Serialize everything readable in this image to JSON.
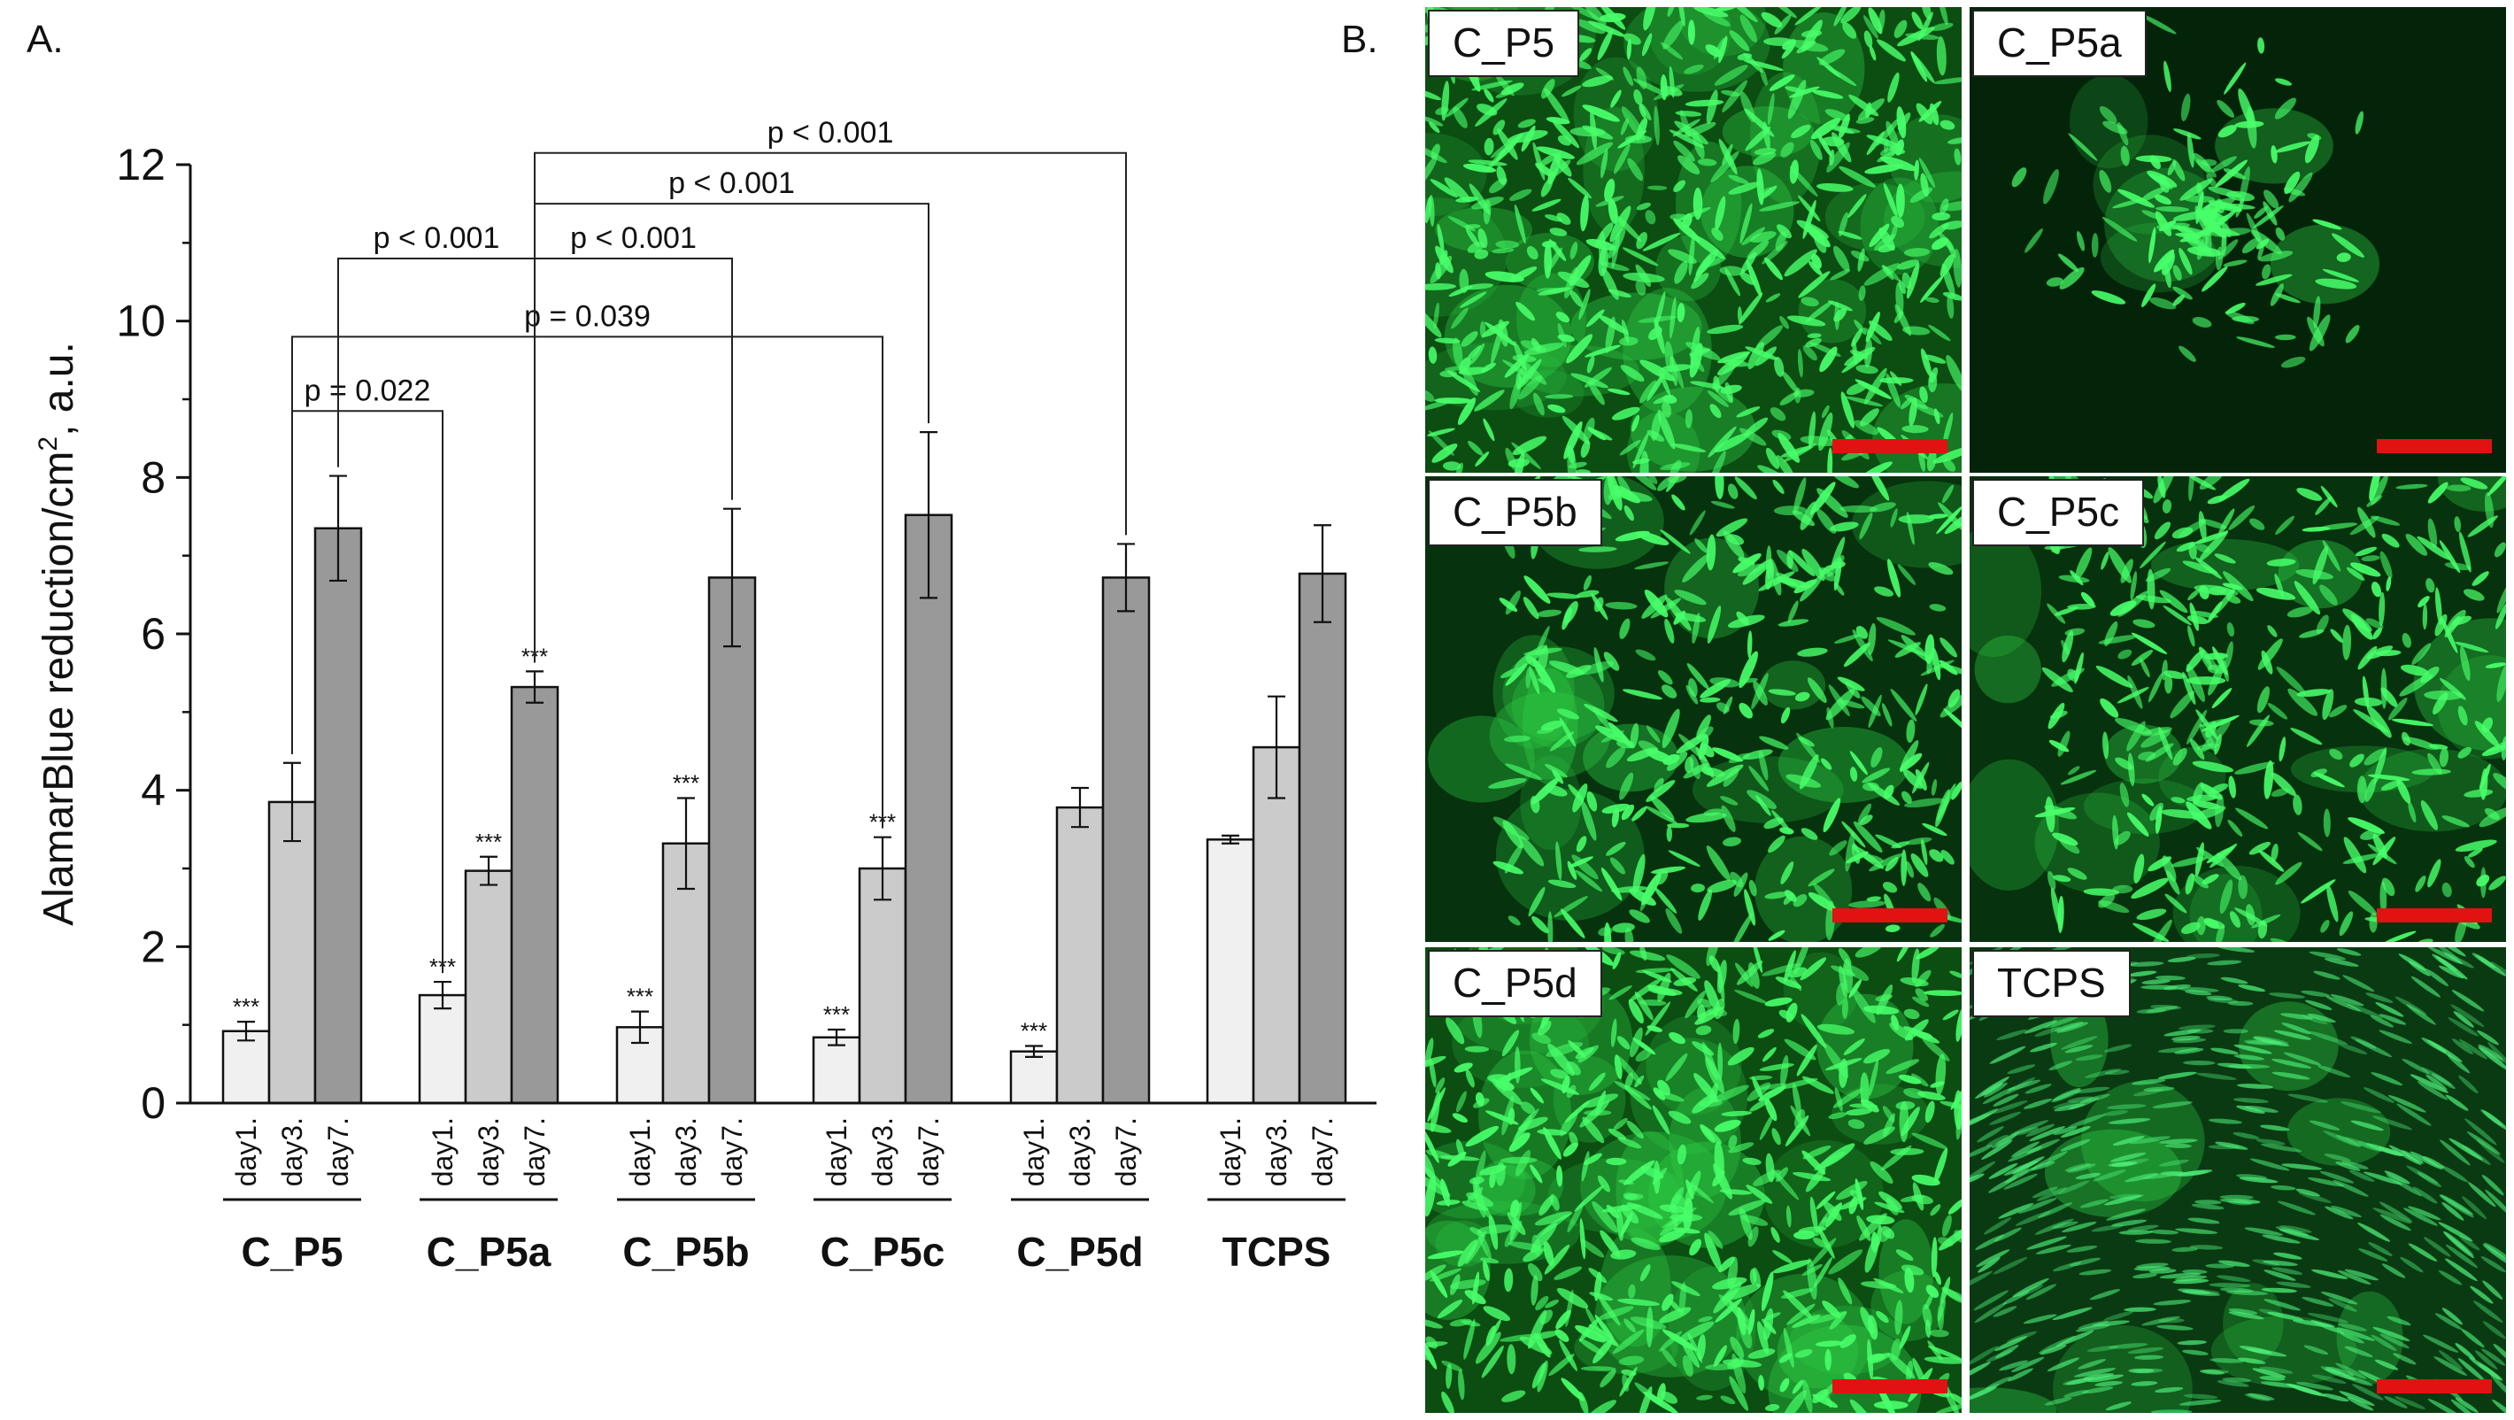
{
  "panel_a_label": "A.",
  "panel_b_label": "B.",
  "chart_data": {
    "type": "bar",
    "ylabel": "AlamarBlue reduction/cm",
    "ylabel_sup": "2",
    "ylabel_suffix": ", a.u.",
    "ylim": [
      0,
      12
    ],
    "yticks": [
      0,
      2,
      4,
      6,
      8,
      10,
      12
    ],
    "groups": [
      "C_P5",
      "C_P5a",
      "C_P5b",
      "C_P5c",
      "C_P5d",
      "TCPS"
    ],
    "series": [
      {
        "name": "day1.",
        "color": "#f0f0f0",
        "values": [
          0.92,
          1.38,
          0.97,
          0.84,
          0.66,
          3.37
        ],
        "errors": [
          0.12,
          0.17,
          0.2,
          0.1,
          0.07,
          0.05
        ],
        "sig": [
          "***",
          "***",
          "***",
          "***",
          "***",
          ""
        ]
      },
      {
        "name": "day3.",
        "color": "#cbcbcb",
        "values": [
          3.85,
          2.97,
          3.32,
          3.0,
          3.78,
          4.55
        ],
        "errors": [
          0.5,
          0.18,
          0.58,
          0.4,
          0.25,
          0.65
        ],
        "sig": [
          "",
          "***",
          "***",
          "***",
          "",
          ""
        ]
      },
      {
        "name": "day7.",
        "color": "#999999",
        "values": [
          7.35,
          5.32,
          6.72,
          7.52,
          6.72,
          6.77
        ],
        "errors": [
          0.67,
          0.2,
          0.88,
          1.06,
          0.43,
          0.62
        ],
        "sig": [
          "",
          "***",
          "",
          "",
          "",
          ""
        ]
      }
    ],
    "comparisons": [
      {
        "label": "p = 0.022",
        "from": {
          "group": 0,
          "series": 1
        },
        "to": {
          "group": 1,
          "series": 0
        },
        "y": 8.85
      },
      {
        "label": "p = 0.039",
        "from": {
          "group": 0,
          "series": 1
        },
        "to": {
          "group": 3,
          "series": 1
        },
        "y": 9.8
      },
      {
        "label": "p < 0.001",
        "from": {
          "group": 0,
          "series": 2
        },
        "to": {
          "group": 1,
          "series": 2
        },
        "y": 10.8
      },
      {
        "label": "p < 0.001",
        "from": {
          "group": 1,
          "series": 2
        },
        "to": {
          "group": 2,
          "series": 2
        },
        "y": 10.8
      },
      {
        "label": "p < 0.001",
        "from": {
          "group": 1,
          "series": 2
        },
        "to": {
          "group": 3,
          "series": 2
        },
        "y": 11.5
      },
      {
        "label": "p < 0.001",
        "from": {
          "group": 1,
          "series": 2
        },
        "to": {
          "group": 4,
          "series": 2
        },
        "y": 12.15
      }
    ]
  },
  "micrographs": [
    {
      "label": "C_P5",
      "style": "dense"
    },
    {
      "label": "C_P5a",
      "style": "sparse"
    },
    {
      "label": "C_P5b",
      "style": "medium"
    },
    {
      "label": "C_P5c",
      "style": "medium"
    },
    {
      "label": "C_P5d",
      "style": "dense"
    },
    {
      "label": "TCPS",
      "style": "confluent"
    }
  ],
  "colors": {
    "cell_green": "#3df05a",
    "background_dark": "#062a0c",
    "scalebar": "#e11212"
  }
}
